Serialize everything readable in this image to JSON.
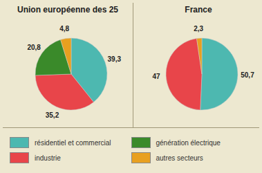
{
  "chart_data": [
    {
      "type": "pie",
      "title": "Union européenne des 25",
      "categories": [
        "résidentiel et commercial",
        "industrie",
        "génération électrique",
        "autres secteurs"
      ],
      "values": [
        39.3,
        35.2,
        20.8,
        4.8
      ],
      "value_labels": [
        "39,3",
        "35,2",
        "20,8",
        "4,8"
      ],
      "colors": [
        "#4db8b0",
        "#e8454a",
        "#3a8a2a",
        "#e8a020"
      ],
      "data_labels": true,
      "legend": "bottom"
    },
    {
      "type": "pie",
      "title": "France",
      "categories": [
        "résidentiel et commercial",
        "industrie",
        "autres secteurs"
      ],
      "values": [
        50.7,
        47.0,
        2.3
      ],
      "value_labels": [
        "50,7",
        "47",
        "2,3"
      ],
      "colors": [
        "#4db8b0",
        "#e8454a",
        "#e8a020"
      ],
      "data_labels": true
    }
  ]
}
